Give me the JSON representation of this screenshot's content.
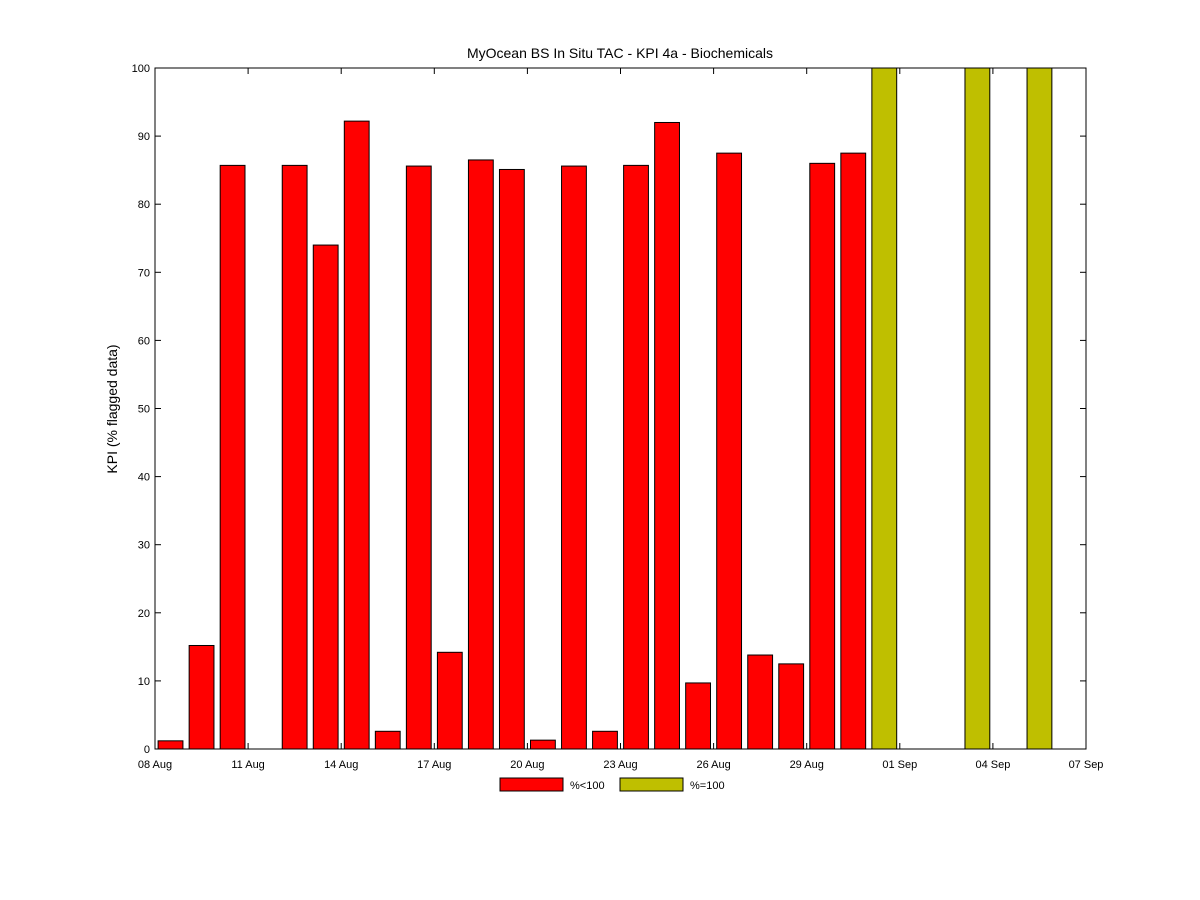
{
  "chart_data": {
    "type": "bar",
    "title": "MyOcean  BS In Situ TAC - KPI 4a - Biochemicals",
    "xlabel": "",
    "ylabel": "KPI (% flagged data)",
    "ylim": [
      0,
      100
    ],
    "yticks": [
      0,
      10,
      20,
      30,
      40,
      50,
      60,
      70,
      80,
      90,
      100
    ],
    "xlim": [
      "2012-08-08",
      "2012-09-07"
    ],
    "xticks": [
      "08 Aug",
      "11 Aug",
      "14 Aug",
      "17 Aug",
      "20 Aug",
      "23 Aug",
      "26 Aug",
      "29 Aug",
      "01 Sep",
      "04 Sep",
      "07 Sep"
    ],
    "legend_position": "bottom-center",
    "grid": false,
    "series": [
      {
        "name": "%<100",
        "color": "#ff0000",
        "points": [
          {
            "x": "2012-08-08",
            "y": 1.2
          },
          {
            "x": "2012-08-09",
            "y": 15.2
          },
          {
            "x": "2012-08-10",
            "y": 85.7
          },
          {
            "x": "2012-08-12",
            "y": 85.7
          },
          {
            "x": "2012-08-13",
            "y": 74.0
          },
          {
            "x": "2012-08-14",
            "y": 92.2
          },
          {
            "x": "2012-08-15",
            "y": 2.6
          },
          {
            "x": "2012-08-16",
            "y": 85.6
          },
          {
            "x": "2012-08-17",
            "y": 14.2
          },
          {
            "x": "2012-08-18",
            "y": 86.5
          },
          {
            "x": "2012-08-19",
            "y": 85.1
          },
          {
            "x": "2012-08-20",
            "y": 1.3
          },
          {
            "x": "2012-08-21",
            "y": 85.6
          },
          {
            "x": "2012-08-22",
            "y": 2.6
          },
          {
            "x": "2012-08-23",
            "y": 85.7
          },
          {
            "x": "2012-08-24",
            "y": 92.0
          },
          {
            "x": "2012-08-25",
            "y": 9.7
          },
          {
            "x": "2012-08-26",
            "y": 87.5
          },
          {
            "x": "2012-08-27",
            "y": 13.8
          },
          {
            "x": "2012-08-28",
            "y": 12.5
          },
          {
            "x": "2012-08-29",
            "y": 86.0
          },
          {
            "x": "2012-08-30",
            "y": 87.5
          }
        ]
      },
      {
        "name": "%=100",
        "color": "#bfbf00",
        "points": [
          {
            "x": "2012-08-31",
            "y": 100
          },
          {
            "x": "2012-09-03",
            "y": 100
          },
          {
            "x": "2012-09-05",
            "y": 100
          }
        ]
      }
    ]
  }
}
